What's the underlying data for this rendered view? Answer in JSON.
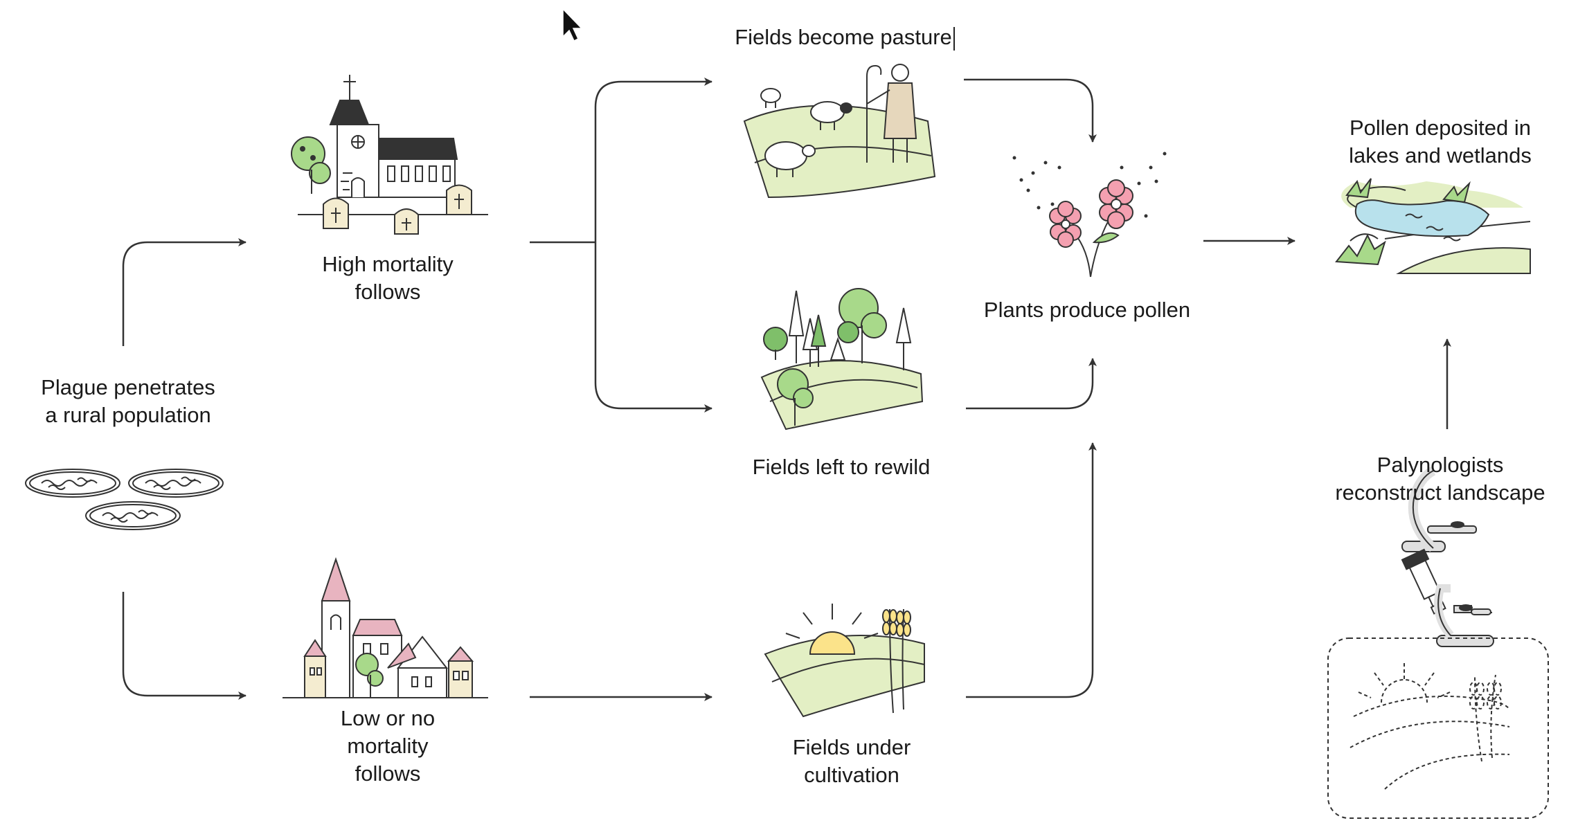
{
  "labels": {
    "plague": [
      "Plague penetrates",
      "a rural population"
    ],
    "high_mortality": [
      "High mortality",
      "follows"
    ],
    "low_mortality": [
      "Low or no",
      "mortality",
      "follows"
    ],
    "pasture": "Fields become pasture",
    "rewild": "Fields left to rewild",
    "cultivation": [
      "Fields under",
      "cultivation"
    ],
    "pollen_produce": "Plants produce pollen",
    "pollen_deposit": [
      "Pollen deposited in",
      "lakes and wetlands"
    ],
    "palynologists": [
      "Palynologists",
      "reconstruct landscape"
    ]
  },
  "colors": {
    "line": "#333333",
    "field_green": "#e3efc4",
    "tree_green": "#a8d98a",
    "flower_pink": "#f4a0b0",
    "roof_pink": "#e8b4c0",
    "water_blue": "#b8e1ec",
    "sun_yellow": "#fbe38a"
  },
  "icons": {
    "plague": "petri-dishes-icon",
    "high_mortality": "church-graveyard-icon",
    "low_mortality": "village-icon",
    "pasture": "shepherd-sheep-icon",
    "rewild": "forest-icon",
    "cultivation": "wheat-field-icon",
    "pollen": "flowers-pollen-icon",
    "wetland": "lake-wetland-icon",
    "microscope": "microscope-icon",
    "reconstruction": "dashed-landscape-icon",
    "cursor": "mouse-cursor-icon"
  }
}
